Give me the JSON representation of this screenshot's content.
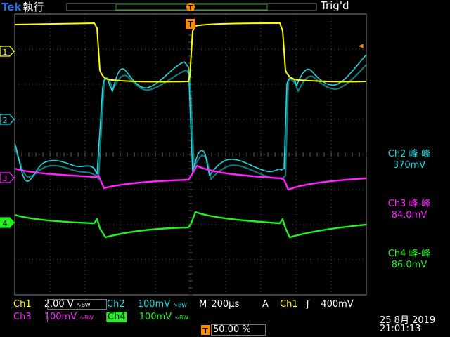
{
  "header": {
    "brand": "Tek",
    "run_state": "執行",
    "trigger_status": "Trig'd",
    "trigger_marker": "T"
  },
  "markers": {
    "ch1": "1",
    "ch2": "2",
    "ch3": "3",
    "ch4": "4",
    "time_ref": "T",
    "trigger_level_arrow": "◂"
  },
  "colors": {
    "ch1": "#ffff00",
    "ch2": "#22d8e0",
    "ch3": "#ff22ff",
    "ch4": "#22ee22",
    "grid": "#555555",
    "accent": "#ff8a00"
  },
  "measurements": [
    {
      "channel": "Ch2",
      "name": "峰-峰",
      "value": "370mV",
      "color": "#22d8e0"
    },
    {
      "channel": "Ch3",
      "name": "峰-峰",
      "value": "84.0mV",
      "color": "#ff22ff"
    },
    {
      "channel": "Ch4",
      "name": "峰-峰",
      "value": "86.0mV",
      "color": "#22ee22"
    }
  ],
  "readout": {
    "ch1_label": "Ch1",
    "ch1_scale": "2.00 V",
    "ch2_label": "Ch2",
    "ch2_scale": "100mV",
    "ch3_label": "Ch3",
    "ch3_scale": "100mV",
    "ch4_label": "Ch4",
    "ch4_scale": "100mV",
    "bw_mark": "∿BW",
    "timebase_label": "M",
    "timebase": "200µs",
    "trigger_mode": "A",
    "trigger_source": "Ch1",
    "trigger_slope": "ʃ",
    "trigger_level": "400mV",
    "position_marker": "T",
    "trigger_position": "50.00 %"
  },
  "datetime": {
    "date": "25 8月  2019",
    "time": "21:01:13"
  }
}
